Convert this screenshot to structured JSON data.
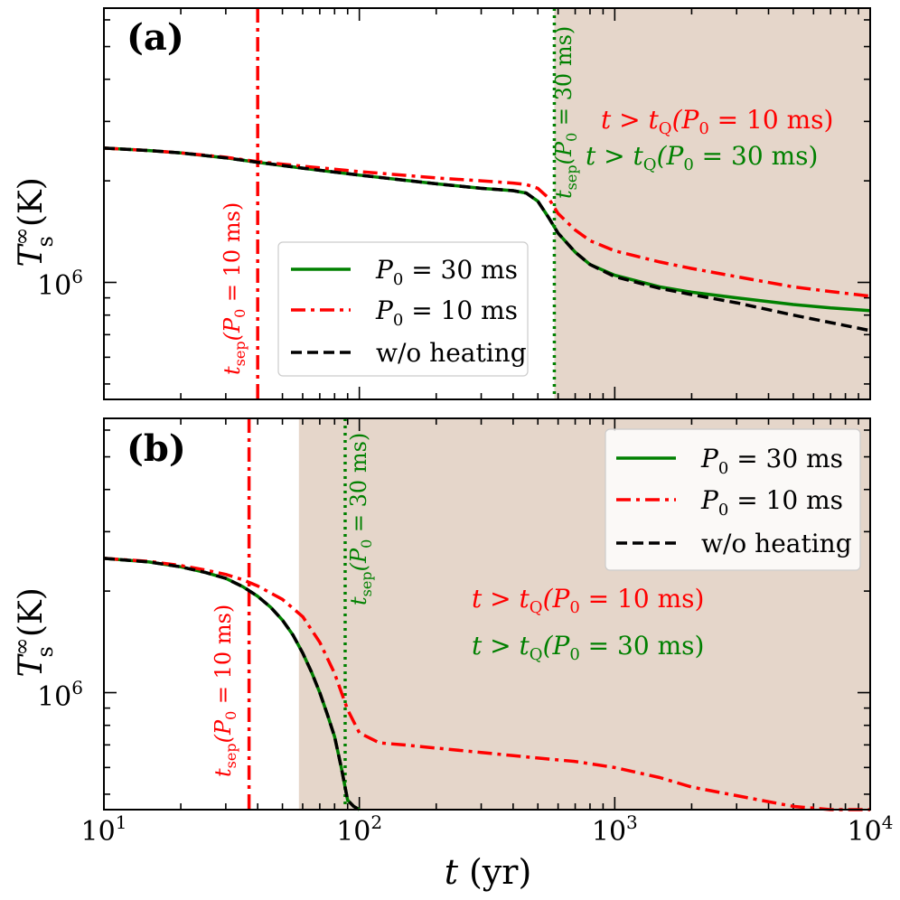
{
  "figure": {
    "xlabel_var": "t",
    "xlabel_unit": "(yr)",
    "ylabel_var": "T",
    "ylabel_sup": "∞",
    "ylabel_sub": "s",
    "ylabel_unit": "(K)",
    "x_tick_labels": [
      {
        "base": "10",
        "exp": "1"
      },
      {
        "base": "10",
        "exp": "2"
      },
      {
        "base": "10",
        "exp": "3"
      },
      {
        "base": "10",
        "exp": "4"
      }
    ],
    "y_tick_label": {
      "base": "10",
      "exp": "6"
    }
  },
  "colors": {
    "green": "#008000",
    "red": "#ff0000",
    "black": "#000000",
    "shade": "#e5d6ca"
  },
  "chart_data": [
    {
      "type": "line",
      "panel_label": "(a)",
      "xscale": "log",
      "yscale": "log",
      "xlim": [
        10,
        10000
      ],
      "ylim": [
        450000,
        6500000
      ],
      "xlabel": "t (yr)",
      "ylabel": "T_s^∞ (K)",
      "shaded_region": {
        "x_start": 580,
        "x_end": 10000,
        "meaning": "t > t_Q"
      },
      "vlines": [
        {
          "x": 40,
          "style": "dashdot",
          "color": "red",
          "label": {
            "main": "t",
            "sub": "sep",
            "rest": "(P",
            "p_sub": "0",
            "tail": " = 10 ms)"
          }
        },
        {
          "x": 580,
          "style": "dotted",
          "color": "green",
          "label": {
            "main": "t",
            "sub": "sep",
            "rest": "(P",
            "p_sub": "0",
            "tail": " = 30 ms)"
          }
        }
      ],
      "annotations": [
        {
          "color": "red",
          "t": "t",
          "gt": " > ",
          "tq": "t",
          "q": "Q",
          "p": "(P",
          "p0": "0",
          "val": " = 10 ms)"
        },
        {
          "color": "green",
          "t": "t",
          "gt": " > ",
          "tq": "t",
          "q": "Q",
          "p": "(P",
          "p0": "0",
          "val": " = 30 ms)"
        }
      ],
      "legend": {
        "position": "center",
        "entries": [
          {
            "name": "P",
            "sub": "0",
            "rest": " = 30 ms",
            "color": "green",
            "style": "solid"
          },
          {
            "name": "P",
            "sub": "0",
            "rest": " = 10 ms",
            "color": "red",
            "style": "dashdot"
          },
          {
            "name": "",
            "sub": "",
            "rest": "w/o heating",
            "color": "black",
            "style": "dashed"
          }
        ]
      },
      "series": [
        {
          "name": "w/o heating",
          "color": "black",
          "style": "dashed",
          "x": [
            10,
            15,
            20,
            30,
            40,
            60,
            100,
            200,
            300,
            400,
            450,
            500,
            550,
            600,
            700,
            800,
            1000,
            1500,
            2000,
            3000,
            5000,
            7000,
            10000
          ],
          "y": [
            2500000,
            2460000,
            2420000,
            2340000,
            2270000,
            2180000,
            2080000,
            1960000,
            1900000,
            1870000,
            1840000,
            1740000,
            1560000,
            1400000,
            1230000,
            1130000,
            1040000,
            960000,
            920000,
            870000,
            800000,
            760000,
            720000
          ]
        },
        {
          "name": "P0 = 30 ms",
          "color": "green",
          "style": "solid",
          "x": [
            10,
            15,
            20,
            30,
            40,
            60,
            100,
            200,
            300,
            400,
            450,
            500,
            550,
            600,
            700,
            800,
            1000,
            1500,
            2000,
            3000,
            5000,
            7000,
            10000
          ],
          "y": [
            2500000,
            2460000,
            2420000,
            2340000,
            2270000,
            2180000,
            2080000,
            1960000,
            1900000,
            1870000,
            1840000,
            1740000,
            1560000,
            1400000,
            1230000,
            1130000,
            1050000,
            970000,
            935000,
            900000,
            860000,
            840000,
            825000
          ]
        },
        {
          "name": "P0 = 10 ms",
          "color": "red",
          "style": "dashdot",
          "x": [
            10,
            15,
            20,
            30,
            40,
            60,
            100,
            200,
            300,
            400,
            450,
            500,
            550,
            600,
            700,
            800,
            1000,
            1500,
            2000,
            3000,
            5000,
            7000,
            10000
          ],
          "y": [
            2500000,
            2460000,
            2420000,
            2350000,
            2280000,
            2210000,
            2130000,
            2040000,
            2000000,
            1970000,
            1950000,
            1900000,
            1780000,
            1600000,
            1430000,
            1330000,
            1240000,
            1150000,
            1100000,
            1040000,
            970000,
            940000,
            910000
          ]
        }
      ]
    },
    {
      "type": "line",
      "panel_label": "(b)",
      "xscale": "log",
      "yscale": "log",
      "xlim": [
        10,
        10000
      ],
      "ylim": [
        450000,
        6500000
      ],
      "xlabel": "t (yr)",
      "ylabel": "T_s^∞ (K)",
      "shaded_region": {
        "x_start": 58,
        "x_end": 10000,
        "meaning": "t > t_Q"
      },
      "vlines": [
        {
          "x": 37,
          "style": "dashdot",
          "color": "red",
          "label": {
            "main": "t",
            "sub": "sep",
            "rest": "(P",
            "p_sub": "0",
            "tail": " = 10 ms)"
          }
        },
        {
          "x": 88,
          "style": "dotted",
          "color": "green",
          "label": {
            "main": "t",
            "sub": "sep",
            "rest": "(P",
            "p_sub": "0",
            "tail": " = 30 ms)"
          }
        }
      ],
      "annotations": [
        {
          "color": "red",
          "t": "t",
          "gt": " > ",
          "tq": "t",
          "q": "Q",
          "p": "(P",
          "p0": "0",
          "val": " = 10 ms)"
        },
        {
          "color": "green",
          "t": "t",
          "gt": " > ",
          "tq": "t",
          "q": "Q",
          "p": "(P",
          "p0": "0",
          "val": " = 30 ms)"
        }
      ],
      "legend": {
        "position": "top-right",
        "entries": [
          {
            "name": "P",
            "sub": "0",
            "rest": " = 30 ms",
            "color": "green",
            "style": "solid"
          },
          {
            "name": "P",
            "sub": "0",
            "rest": " = 10 ms",
            "color": "red",
            "style": "dashdot"
          },
          {
            "name": "",
            "sub": "",
            "rest": "w/o heating",
            "color": "black",
            "style": "dashed"
          }
        ]
      },
      "series": [
        {
          "name": "w/o heating",
          "color": "black",
          "style": "dashed",
          "x": [
            10,
            15,
            20,
            25,
            30,
            35,
            40,
            45,
            50,
            55,
            60,
            65,
            70,
            75,
            80,
            85,
            90,
            95,
            100
          ],
          "y": [
            2500000,
            2440000,
            2360000,
            2270000,
            2180000,
            2060000,
            1930000,
            1790000,
            1640000,
            1480000,
            1310000,
            1150000,
            1000000,
            860000,
            740000,
            600000,
            480000,
            460000,
            450000
          ]
        },
        {
          "name": "P0 = 30 ms",
          "color": "green",
          "style": "solid",
          "x": [
            10,
            15,
            20,
            25,
            30,
            35,
            40,
            45,
            50,
            55,
            60,
            65,
            70,
            75,
            80,
            85,
            90,
            95,
            100
          ],
          "y": [
            2500000,
            2440000,
            2360000,
            2270000,
            2180000,
            2060000,
            1930000,
            1790000,
            1640000,
            1480000,
            1310000,
            1150000,
            1000000,
            860000,
            740000,
            600000,
            480000,
            460000,
            450000
          ]
        },
        {
          "name": "P0 = 10 ms",
          "color": "red",
          "style": "dashdot",
          "x": [
            10,
            15,
            20,
            25,
            30,
            35,
            40,
            50,
            60,
            70,
            80,
            90,
            100,
            120,
            150,
            200,
            300,
            500,
            700,
            1000,
            1500,
            2000,
            3000,
            5000,
            7000,
            10000
          ],
          "y": [
            2500000,
            2450000,
            2380000,
            2310000,
            2240000,
            2160000,
            2070000,
            1890000,
            1680000,
            1410000,
            1140000,
            890000,
            760000,
            710000,
            700000,
            685000,
            665000,
            640000,
            625000,
            600000,
            560000,
            525000,
            495000,
            460000,
            445000,
            430000
          ]
        }
      ]
    }
  ]
}
